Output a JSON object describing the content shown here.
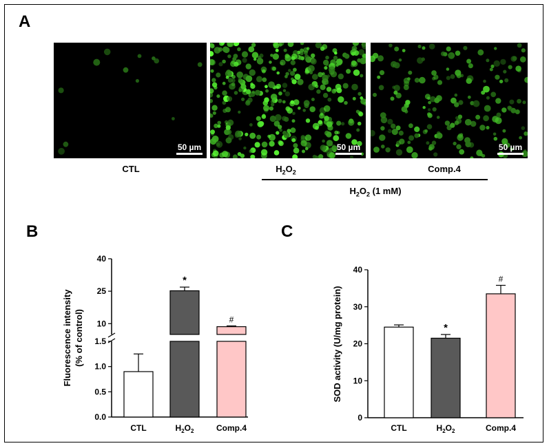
{
  "panels": {
    "a": "A",
    "b": "B",
    "c": "C"
  },
  "panel_a": {
    "images": [
      {
        "scale_label": "50 µm",
        "caption": "CTL",
        "level": 0.02
      },
      {
        "scale_label": "50 µm",
        "caption_main": "H",
        "caption_sub": "2",
        "caption_tail": "O",
        "caption_tail_sub": "2",
        "level": 0.9
      },
      {
        "scale_label": "50 µm",
        "caption": "Comp.4",
        "level": 0.45
      }
    ],
    "treatment": {
      "main": "H",
      "sub": "2",
      "tail": "O",
      "tail_sub": "2",
      "suffix": "(1 mM)"
    }
  },
  "chart_data": [
    {
      "type": "bar",
      "categories": [
        "CTL",
        "H2O2",
        "Comp.4"
      ],
      "category_labels": [
        {
          "main": "CTL",
          "sub": "",
          "tail": "",
          "tail_sub": ""
        },
        {
          "main": "H",
          "sub": "2",
          "tail": "O",
          "tail_sub": "2"
        },
        {
          "main": "Comp.4",
          "sub": "",
          "tail": "",
          "tail_sub": ""
        }
      ],
      "values": [
        0.9,
        25.2,
        8.6
      ],
      "errors": [
        0.35,
        1.7,
        0.35
      ],
      "significance": [
        "",
        "*",
        "#"
      ],
      "colors": [
        "#ffffff",
        "#595959",
        "#ffc7c7"
      ],
      "ylabel": "Fluorescence intensity",
      "ylabel2": "(% of control)",
      "axis_break": true,
      "lower_range": [
        0,
        1.5
      ],
      "lower_ticks": [
        "0.0",
        "0.5",
        "1.0",
        "1.5"
      ],
      "upper_range": [
        5,
        40
      ],
      "upper_ticks": [
        "10",
        "25",
        "40"
      ]
    },
    {
      "type": "bar",
      "categories": [
        "CTL",
        "H2O2",
        "Comp.4"
      ],
      "category_labels": [
        {
          "main": "CTL",
          "sub": "",
          "tail": "",
          "tail_sub": ""
        },
        {
          "main": "H",
          "sub": "2",
          "tail": "O",
          "tail_sub": "2"
        },
        {
          "main": "Comp.4",
          "sub": "",
          "tail": "",
          "tail_sub": ""
        }
      ],
      "values": [
        24.5,
        21.5,
        33.5
      ],
      "errors": [
        0.6,
        1.0,
        2.3
      ],
      "significance": [
        "",
        "*",
        "#"
      ],
      "colors": [
        "#ffffff",
        "#595959",
        "#ffc7c7"
      ],
      "ylabel": "SOD activity (U/mg protein)",
      "ylim": [
        0,
        40
      ],
      "ticks": [
        "0",
        "10",
        "20",
        "30",
        "40"
      ]
    }
  ]
}
